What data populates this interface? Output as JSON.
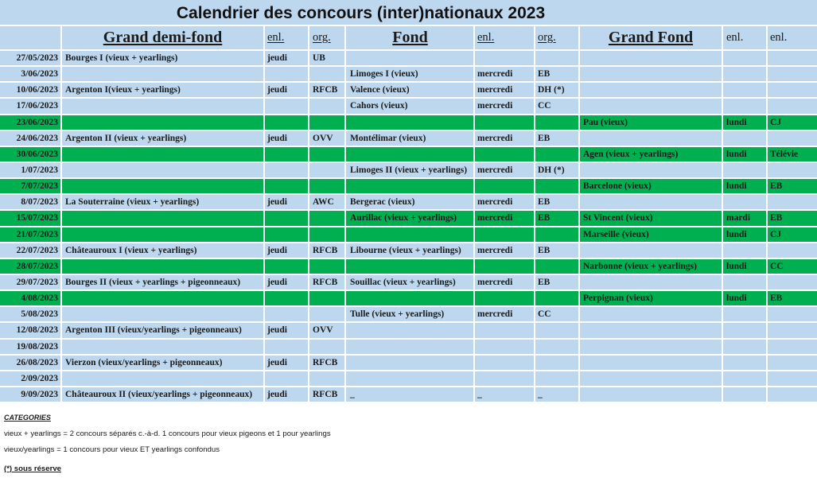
{
  "title": "Calendrier des concours (inter)nationaux 2023",
  "colors": {
    "cell_background": "#bdd7ee",
    "highlighted_row": "#00b050",
    "grid_lines": "#ffffff",
    "text": "#1a1a1a"
  },
  "headers": {
    "grand_demi_fond": "Grand demi-fond",
    "grand_demi_fond_enl": "enl.",
    "grand_demi_fond_org": "org.",
    "fond": "Fond",
    "fond_enl": "enl.",
    "fond_org": "org.",
    "grand_fond": "Grand Fond",
    "grand_fond_enl": "enl.",
    "grand_fond_col4": "enl."
  },
  "rows": [
    {
      "date": "27/05/2023",
      "highlighted": false,
      "gdf": "Bourges I (vieux + yearlings)",
      "gdf_enl": "jeudi",
      "gdf_org": "UB"
    },
    {
      "date": "3/06/2023",
      "highlighted": false,
      "fond": "Limoges I (vieux)",
      "fond_enl": "mercredi",
      "fond_org": "EB"
    },
    {
      "date": "10/06/2023",
      "highlighted": false,
      "gdf": "Argenton I(vieux + yearlings)",
      "gdf_enl": "jeudi",
      "gdf_org": "RFCB",
      "fond": "Valence (vieux)",
      "fond_enl": "mercredi",
      "fond_org": "DH (*)"
    },
    {
      "date": "17/06/2023",
      "highlighted": false,
      "fond": "Cahors (vieux)",
      "fond_enl": "mercredi",
      "fond_org": "CC"
    },
    {
      "date": "23/06/2023",
      "highlighted": true,
      "gf": "Pau (vieux)",
      "gf_enl": "lundi",
      "gf_col4": "CJ"
    },
    {
      "date": "24/06/2023",
      "highlighted": false,
      "gdf": "Argenton II (vieux + yearlings)",
      "gdf_enl": "jeudi",
      "gdf_org": "OVV",
      "fond": "Montélimar (vieux)",
      "fond_enl": "mercredi",
      "fond_org": "EB"
    },
    {
      "date": "30/06/2023",
      "highlighted": true,
      "gf": "Agen (vieux + yearlings)",
      "gf_enl": "lundi",
      "gf_col4": "Télévie"
    },
    {
      "date": "1/07/2023",
      "highlighted": false,
      "fond": "Limoges II (vieux + yearlings)",
      "fond_enl": "mercredi",
      "fond_org": "DH (*)"
    },
    {
      "date": "7/07/2023",
      "highlighted": true,
      "gf": "Barcelone (vieux)",
      "gf_enl": "lundi",
      "gf_col4": "EB"
    },
    {
      "date": "8/07/2023",
      "highlighted": false,
      "gdf": "La Souterraine (vieux + yearlings)",
      "gdf_enl": "jeudi",
      "gdf_org": "AWC",
      "fond": "Bergerac (vieux)",
      "fond_enl": "mercredi",
      "fond_org": "EB"
    },
    {
      "date": "15/07/2023",
      "highlighted": true,
      "fond": "Aurillac (vieux + yearlings)",
      "fond_enl": "mercredi",
      "fond_org": "EB",
      "gf": "St Vincent (vieux)",
      "gf_enl": "mardi",
      "gf_col4": "EB"
    },
    {
      "date": "21/07/2023",
      "highlighted": true,
      "gf": "Marseille (vieux)",
      "gf_enl": "lundi",
      "gf_col4": "CJ"
    },
    {
      "date": "22/07/2023",
      "highlighted": false,
      "gdf": "Châteauroux I (vieux + yearlings)",
      "gdf_enl": "jeudi",
      "gdf_org": "RFCB",
      "fond": "Libourne (vieux + yearlings)",
      "fond_enl": "mercredi",
      "fond_org": "EB"
    },
    {
      "date": "28/07/2023",
      "highlighted": true,
      "gf": "Narbonne (vieux + yearlings)",
      "gf_enl": "lundi",
      "gf_col4": "CC"
    },
    {
      "date": "29/07/2023",
      "highlighted": false,
      "gdf": "Bourges II (vieux + yearlings + pigeonneaux)",
      "gdf_enl": "jeudi",
      "gdf_org": "RFCB",
      "fond": "Souillac (vieux + yearlings)",
      "fond_enl": "mercredi",
      "fond_org": "EB"
    },
    {
      "date": "4/08/2023",
      "highlighted": true,
      "gf": "Perpignan (vieux)",
      "gf_enl": "lundi",
      "gf_col4": "EB"
    },
    {
      "date": "5/08/2023",
      "highlighted": false,
      "fond": "Tulle (vieux + yearlings)",
      "fond_enl": "mercredi",
      "fond_org": "CC"
    },
    {
      "date": "12/08/2023",
      "highlighted": false,
      "gdf": "Argenton III (vieux/yearlings + pigeonneaux)",
      "gdf_enl": "jeudi",
      "gdf_org": "OVV"
    },
    {
      "date": "19/08/2023",
      "highlighted": false
    },
    {
      "date": "26/08/2023",
      "highlighted": false,
      "gdf": "Vierzon (vieux/yearlings + pigeonneaux)",
      "gdf_enl": "jeudi",
      "gdf_org": "RFCB"
    },
    {
      "date": "2/09/2023",
      "highlighted": false
    },
    {
      "date": "9/09/2023",
      "highlighted": false,
      "gdf": "Châteauroux II (vieux/yearlings + pigeonneaux)",
      "gdf_enl": "jeudi",
      "gdf_org": "RFCB",
      "fond": "_",
      "fond_enl": "_",
      "fond_org": "_"
    }
  ],
  "footer": {
    "categories_heading": "CATEGORIES",
    "note_separate": "vieux + yearlings = 2 concours séparés c.-à-d. 1 concours pour vieux pigeons et 1 pour yearlings",
    "note_combined": "vieux/yearlings = 1 concours pour vieux ET yearlings confondus",
    "reserve_note": "(*) sous réserve"
  }
}
